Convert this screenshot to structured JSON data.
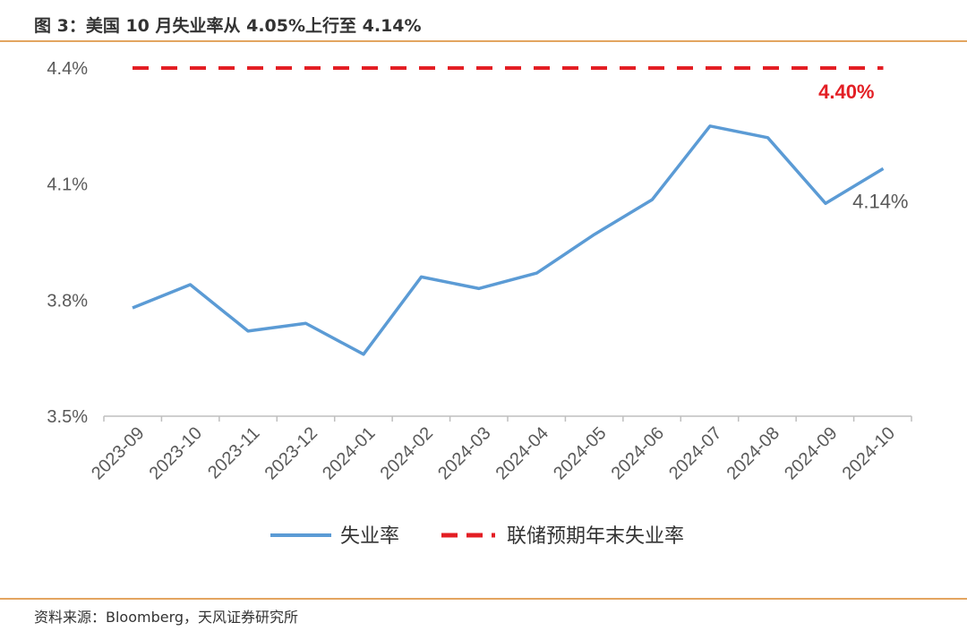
{
  "header": {
    "title": "图 3：美国 10 月失业率从 4.05%上行至 4.14%"
  },
  "footer": {
    "source": "资料来源：Bloomberg，天风证券研究所"
  },
  "colors": {
    "series_line": "#5b9bd5",
    "target_line": "#e31e24",
    "rule": "#e3a560"
  },
  "chart_data": {
    "type": "line",
    "categories": [
      "2023-09",
      "2023-10",
      "2023-11",
      "2023-12",
      "2024-01",
      "2024-02",
      "2024-03",
      "2024-04",
      "2024-05",
      "2024-06",
      "2024-07",
      "2024-08",
      "2024-09",
      "2024-10"
    ],
    "series": [
      {
        "name": "失业率",
        "values": [
          3.78,
          3.84,
          3.72,
          3.74,
          3.66,
          3.86,
          3.83,
          3.87,
          3.97,
          4.06,
          4.25,
          4.22,
          4.05,
          4.14
        ],
        "color": "#5b9bd5",
        "style": "solid"
      },
      {
        "name": "联储预期年末失业率",
        "values": [
          4.4,
          4.4,
          4.4,
          4.4,
          4.4,
          4.4,
          4.4,
          4.4,
          4.4,
          4.4,
          4.4,
          4.4,
          4.4,
          4.4
        ],
        "color": "#e31e24",
        "style": "dashed"
      }
    ],
    "y_ticks": [
      "3.5%",
      "3.8%",
      "4.1%",
      "4.4%"
    ],
    "y_tick_values": [
      3.5,
      3.8,
      4.1,
      4.4
    ],
    "ylim": [
      3.5,
      4.4
    ],
    "data_labels": {
      "target": "4.40%",
      "last": "4.14%"
    },
    "grid": false,
    "legend_position": "bottom"
  }
}
